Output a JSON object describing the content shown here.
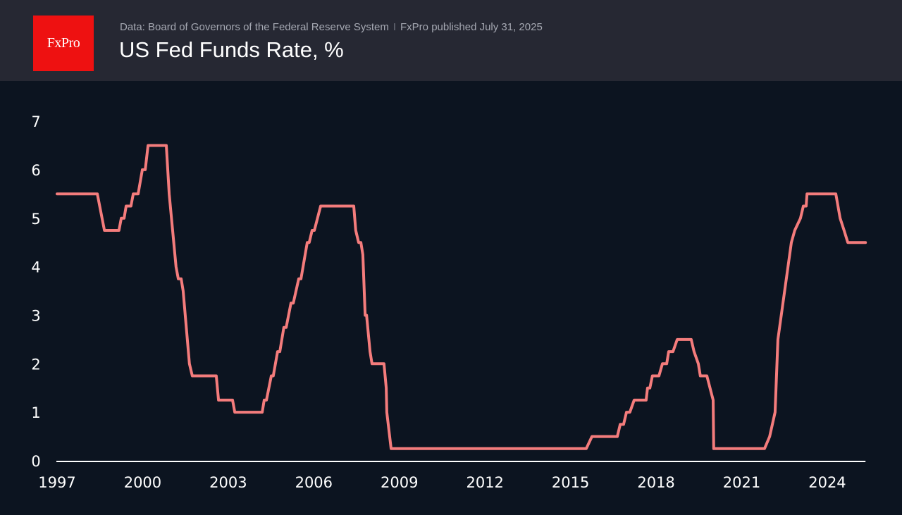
{
  "header": {
    "logo_text": "FxPro",
    "source": "Data: Board of Governors of the Federal Reserve System",
    "separator": "I",
    "published": "FxPro published July 31, 2025",
    "title": "US Fed Funds Rate, %"
  },
  "colors": {
    "background": "#0c1420",
    "header_background": "#262833",
    "logo": "#ee1111",
    "line": "#f47c7c",
    "axis": "#ffffff"
  },
  "chart_data": {
    "type": "line",
    "title": "US Fed Funds Rate, %",
    "xlabel": "",
    "ylabel": "",
    "xlim": [
      1997,
      2025.34
    ],
    "ylim": [
      0,
      7
    ],
    "grid": false,
    "legend": "none",
    "x_ticks": [
      "1997",
      "2000",
      "2003",
      "2006",
      "2009",
      "2012",
      "2015",
      "2018",
      "2021",
      "2024"
    ],
    "y_ticks": [
      "0",
      "1",
      "2",
      "3",
      "4",
      "5",
      "6",
      "7"
    ],
    "series": [
      {
        "points": [
          [
            1997.0,
            5.5
          ],
          [
            1998.41,
            5.5
          ],
          [
            1998.66,
            4.75
          ],
          [
            1999.17,
            4.75
          ],
          [
            1999.25,
            5.0
          ],
          [
            1999.35,
            5.0
          ],
          [
            1999.42,
            5.25
          ],
          [
            1999.59,
            5.25
          ],
          [
            1999.67,
            5.5
          ],
          [
            1999.84,
            5.5
          ],
          [
            1999.99,
            6.0
          ],
          [
            2000.09,
            6.0
          ],
          [
            2000.19,
            6.5
          ],
          [
            2000.83,
            6.5
          ],
          [
            2000.93,
            5.5
          ],
          [
            2001.17,
            4.0
          ],
          [
            2001.25,
            3.75
          ],
          [
            2001.35,
            3.75
          ],
          [
            2001.42,
            3.5
          ],
          [
            2001.64,
            2.0
          ],
          [
            2001.74,
            1.75
          ],
          [
            2002.58,
            1.75
          ],
          [
            2002.66,
            1.25
          ],
          [
            2003.15,
            1.25
          ],
          [
            2003.23,
            1.0
          ],
          [
            2004.19,
            1.0
          ],
          [
            2004.26,
            1.25
          ],
          [
            2004.34,
            1.25
          ],
          [
            2004.51,
            1.75
          ],
          [
            2004.58,
            1.75
          ],
          [
            2004.73,
            2.25
          ],
          [
            2004.81,
            2.25
          ],
          [
            2004.95,
            2.75
          ],
          [
            2005.03,
            2.75
          ],
          [
            2005.2,
            3.25
          ],
          [
            2005.28,
            3.25
          ],
          [
            2005.47,
            3.75
          ],
          [
            2005.55,
            3.75
          ],
          [
            2005.77,
            4.5
          ],
          [
            2005.84,
            4.5
          ],
          [
            2005.94,
            4.75
          ],
          [
            2006.02,
            4.75
          ],
          [
            2006.24,
            5.25
          ],
          [
            2007.4,
            5.25
          ],
          [
            2007.47,
            4.75
          ],
          [
            2007.57,
            4.5
          ],
          [
            2007.65,
            4.5
          ],
          [
            2007.72,
            4.25
          ],
          [
            2007.8,
            3.0
          ],
          [
            2007.85,
            3.0
          ],
          [
            2007.97,
            2.25
          ],
          [
            2008.04,
            2.0
          ],
          [
            2008.46,
            2.0
          ],
          [
            2008.54,
            1.5
          ],
          [
            2008.56,
            1.0
          ],
          [
            2008.71,
            0.25
          ],
          [
            2015.55,
            0.25
          ],
          [
            2015.75,
            0.5
          ],
          [
            2016.64,
            0.5
          ],
          [
            2016.74,
            0.75
          ],
          [
            2016.86,
            0.75
          ],
          [
            2016.96,
            1.0
          ],
          [
            2017.08,
            1.0
          ],
          [
            2017.23,
            1.25
          ],
          [
            2017.65,
            1.25
          ],
          [
            2017.7,
            1.5
          ],
          [
            2017.78,
            1.5
          ],
          [
            2017.87,
            1.75
          ],
          [
            2018.1,
            1.75
          ],
          [
            2018.22,
            2.0
          ],
          [
            2018.37,
            2.0
          ],
          [
            2018.44,
            2.25
          ],
          [
            2018.59,
            2.25
          ],
          [
            2018.74,
            2.5
          ],
          [
            2019.23,
            2.5
          ],
          [
            2019.33,
            2.25
          ],
          [
            2019.48,
            2.0
          ],
          [
            2019.55,
            1.75
          ],
          [
            2019.78,
            1.75
          ],
          [
            2020.0,
            1.25
          ],
          [
            2020.02,
            0.25
          ],
          [
            2021.8,
            0.25
          ],
          [
            2021.98,
            0.5
          ],
          [
            2022.17,
            1.0
          ],
          [
            2022.27,
            2.5
          ],
          [
            2022.74,
            4.5
          ],
          [
            2022.86,
            4.75
          ],
          [
            2023.06,
            5.0
          ],
          [
            2023.16,
            5.25
          ],
          [
            2023.26,
            5.25
          ],
          [
            2023.29,
            5.5
          ],
          [
            2024.3,
            5.5
          ],
          [
            2024.45,
            5.0
          ],
          [
            2024.59,
            4.75
          ],
          [
            2024.72,
            4.5
          ],
          [
            2025.34,
            4.5
          ]
        ]
      }
    ]
  }
}
